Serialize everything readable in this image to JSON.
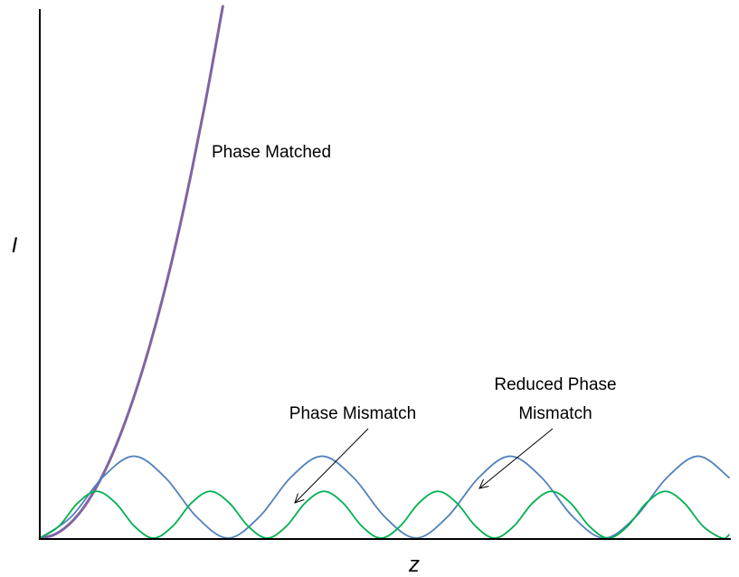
{
  "chart_data": {
    "type": "line",
    "title": "",
    "xlabel": "z",
    "ylabel": "I",
    "xlim": [
      0,
      1
    ],
    "ylim": [
      0,
      1
    ],
    "grid": false,
    "legend": "none",
    "axis_ticks": "none",
    "series": [
      {
        "name": "Phase Matched",
        "color": "#8064A2",
        "x": [
          0,
          0.02,
          0.04,
          0.06,
          0.08,
          0.1,
          0.12,
          0.14,
          0.16,
          0.18,
          0.2,
          0.22,
          0.24,
          0.26,
          0.2655
        ],
        "y": [
          0,
          0.006,
          0.023,
          0.051,
          0.091,
          0.142,
          0.205,
          0.279,
          0.364,
          0.46,
          0.568,
          0.688,
          0.818,
          0.96,
          1.0
        ]
      },
      {
        "name": "Reduced Phase Mismatch",
        "color": "#4F81BD",
        "x": [
          0,
          0.0455,
          0.091,
          0.1365,
          0.182,
          0.2275,
          0.273,
          0.3185,
          0.364,
          0.4095,
          0.455,
          0.5005,
          0.546,
          0.5915,
          0.637,
          0.6825,
          0.728,
          0.7735,
          0.819,
          0.8645,
          0.91,
          0.9555,
          1.0
        ],
        "y": [
          0,
          0.04,
          0.114,
          0.154,
          0.114,
          0.04,
          0,
          0.04,
          0.114,
          0.154,
          0.114,
          0.04,
          0,
          0.04,
          0.114,
          0.154,
          0.114,
          0.04,
          0,
          0.04,
          0.114,
          0.154,
          0.114
        ]
      },
      {
        "name": "Phase Mismatch",
        "color": "#00B050",
        "x": [
          0,
          0.0275,
          0.055,
          0.0825,
          0.11,
          0.1375,
          0.165,
          0.1925,
          0.22,
          0.2475,
          0.275,
          0.3025,
          0.33,
          0.3575,
          0.385,
          0.4125,
          0.44,
          0.4675,
          0.495,
          0.5225,
          0.55,
          0.5775,
          0.605,
          0.6325,
          0.66,
          0.6875,
          0.715,
          0.7425,
          0.77,
          0.7975,
          0.825,
          0.8525,
          0.88,
          0.9075,
          0.935,
          0.9625,
          0.99,
          1.0
        ],
        "y": [
          0,
          0.022,
          0.066,
          0.088,
          0.066,
          0.022,
          0,
          0.022,
          0.066,
          0.088,
          0.066,
          0.022,
          0,
          0.022,
          0.066,
          0.088,
          0.066,
          0.022,
          0,
          0.022,
          0.066,
          0.088,
          0.066,
          0.022,
          0,
          0.022,
          0.066,
          0.088,
          0.066,
          0.022,
          0,
          0.022,
          0.066,
          0.088,
          0.066,
          0.022,
          0,
          0.006
        ]
      }
    ],
    "annotations": [
      {
        "name": "phase-matched",
        "lines": [
          "Phase Matched"
        ],
        "arrow": false
      },
      {
        "name": "phase-mismatch",
        "lines": [
          "Phase Mismatch"
        ],
        "arrow": true
      },
      {
        "name": "reduced-phase-mismatch",
        "lines": [
          "Reduced Phase",
          "Mismatch"
        ],
        "arrow": true
      }
    ]
  }
}
